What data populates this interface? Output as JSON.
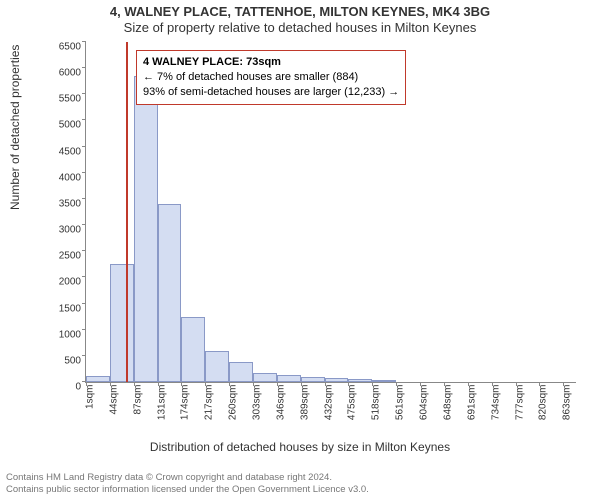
{
  "titles": {
    "line1": "4, WALNEY PLACE, TATTENHOE, MILTON KEYNES, MK4 3BG",
    "line2": "Size of property relative to detached houses in Milton Keynes"
  },
  "axes": {
    "ylabel": "Number of detached properties",
    "xlabel": "Distribution of detached houses by size in Milton Keynes",
    "ylim": [
      0,
      6500
    ],
    "yticks": [
      0,
      500,
      1000,
      1500,
      2000,
      2500,
      3000,
      3500,
      4000,
      4500,
      5000,
      5500,
      6000,
      6500
    ],
    "xticks_labels": [
      "1sqm",
      "44sqm",
      "87sqm",
      "131sqm",
      "174sqm",
      "217sqm",
      "260sqm",
      "303sqm",
      "346sqm",
      "389sqm",
      "432sqm",
      "475sqm",
      "518sqm",
      "561sqm",
      "604sqm",
      "648sqm",
      "691sqm",
      "734sqm",
      "777sqm",
      "820sqm",
      "863sqm"
    ],
    "xlim": [
      1,
      884
    ]
  },
  "histogram": {
    "type": "histogram",
    "bin_start": 1,
    "bin_width": 43,
    "values": [
      110,
      2250,
      5850,
      3400,
      1250,
      600,
      380,
      180,
      130,
      90,
      70,
      60,
      30,
      0,
      0,
      0,
      0,
      0,
      0,
      0,
      0
    ],
    "bar_fill": "#d4ddf2",
    "bar_stroke": "#8a99c7",
    "bar_stroke_width": 1
  },
  "reference_line": {
    "x": 73,
    "color": "#c0392b",
    "width": 2
  },
  "annotation": {
    "border_color": "#c0392b",
    "lines": {
      "bold": "4 WALNEY PLACE: 73sqm",
      "l2": "← 7% of detached houses are smaller (884)",
      "l3": "93% of semi-detached houses are larger (12,233) →"
    }
  },
  "colors": {
    "background": "#ffffff",
    "axis": "#888888",
    "text": "#333333",
    "footer": "#777777"
  },
  "footer": {
    "l1": "Contains HM Land Registry data © Crown copyright and database right 2024.",
    "l2": "Contains public sector information licensed under the Open Government Licence v3.0."
  }
}
